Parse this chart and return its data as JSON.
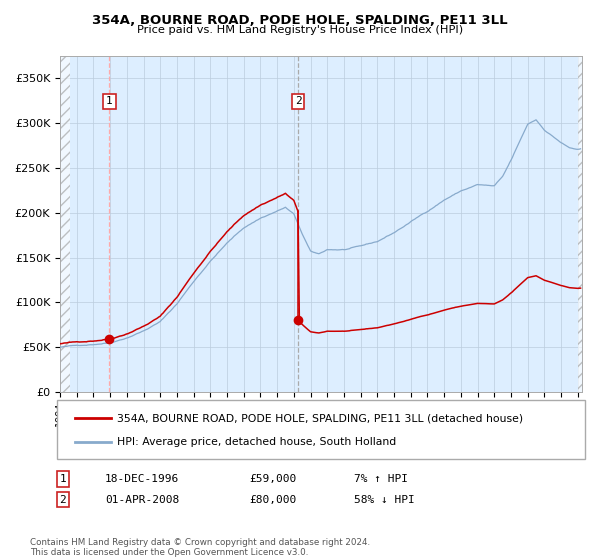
{
  "title1": "354A, BOURNE ROAD, PODE HOLE, SPALDING, PE11 3LL",
  "title2": "Price paid vs. HM Land Registry's House Price Index (HPI)",
  "legend_property": "354A, BOURNE ROAD, PODE HOLE, SPALDING, PE11 3LL (detached house)",
  "legend_hpi": "HPI: Average price, detached house, South Holland",
  "annotation1_date": "18-DEC-1996",
  "annotation1_price": "£59,000",
  "annotation1_hpi": "7% ↑ HPI",
  "annotation2_date": "01-APR-2008",
  "annotation2_price": "£80,000",
  "annotation2_hpi": "58% ↓ HPI",
  "footer": "Contains HM Land Registry data © Crown copyright and database right 2024.\nThis data is licensed under the Open Government Licence v3.0.",
  "sale1_year": 1996.96,
  "sale1_price": 59000,
  "sale2_year": 2008.25,
  "sale2_price": 80000,
  "ylim_max": 375000,
  "property_color": "#cc0000",
  "hpi_color": "#88aacc",
  "background_color": "#ddeeff",
  "plot_bg": "#ffffff",
  "grid_color": "#bbccdd",
  "sale_marker_color": "#cc0000",
  "vline1_color": "#ffaaaa",
  "vline2_color": "#aaaaaa"
}
